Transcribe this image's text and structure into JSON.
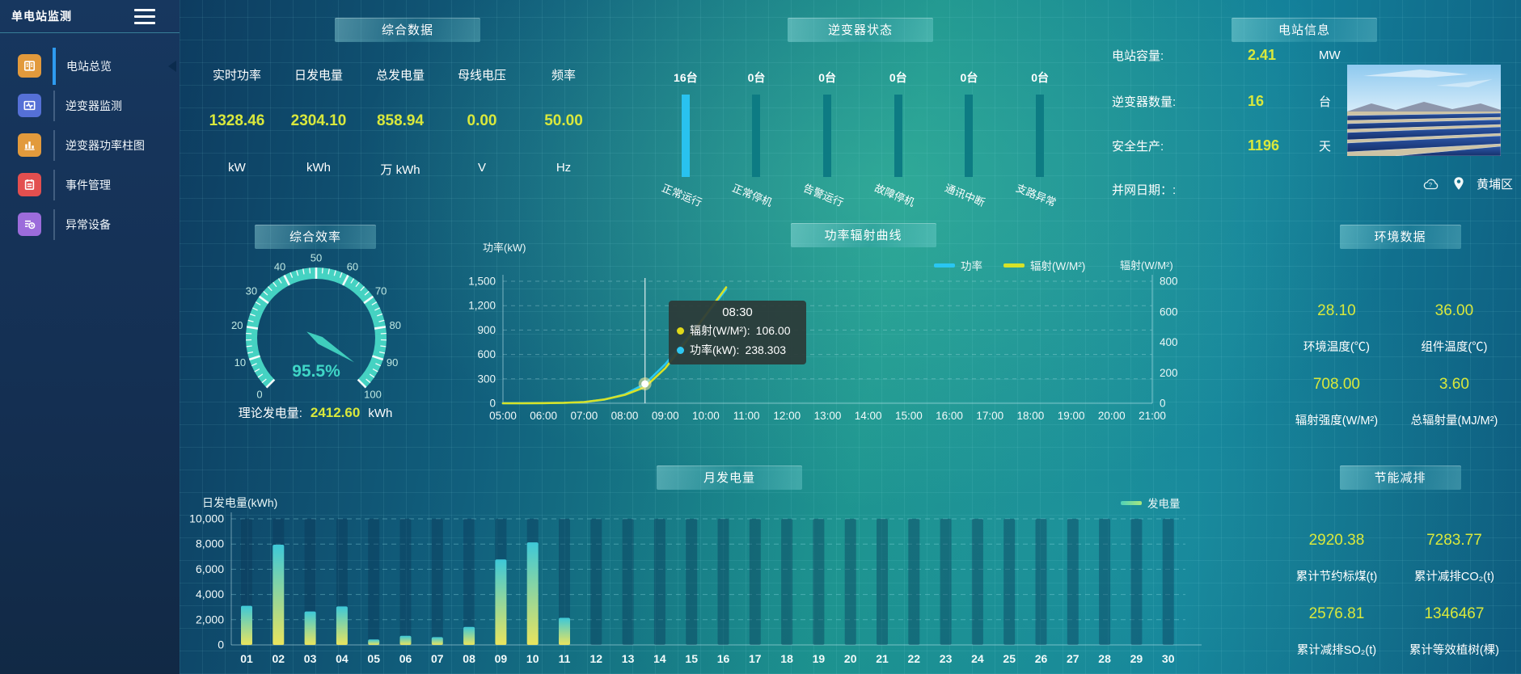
{
  "colors": {
    "value_yellow": "#d9e83c",
    "power_cyan": "#29c6f2",
    "radiation_yellow": "#d6e228",
    "inverter_bar_active": "#29c2ef",
    "inverter_bar_idle": "#0d7b83",
    "gauge_teal": "#45d2c2",
    "bar_gradient_top": "#3dc8d8",
    "bar_gradient_bottom": "#e9e45e"
  },
  "sidebar": {
    "title": "单电站监测",
    "items": [
      {
        "label": "电站总览",
        "icon": "book-icon",
        "active": true
      },
      {
        "label": "逆变器监测",
        "icon": "monitor-wave-icon",
        "active": false
      },
      {
        "label": "逆变器功率柱图",
        "icon": "bar-chart-icon",
        "active": false
      },
      {
        "label": "事件管理",
        "icon": "notebook-icon",
        "active": false
      },
      {
        "label": "异常设备",
        "icon": "device-list-clock-icon",
        "active": false
      }
    ]
  },
  "panels": {
    "summary": {
      "title": "综合数据",
      "metrics": [
        {
          "label": "实时功率",
          "value": "1328.46",
          "unit": "kW"
        },
        {
          "label": "日发电量",
          "value": "2304.10",
          "unit": "kWh"
        },
        {
          "label": "总发电量",
          "value": "858.94",
          "unit": "万 kWh"
        },
        {
          "label": "母线电压",
          "value": "0.00",
          "unit": "V"
        },
        {
          "label": "频率",
          "value": "50.00",
          "unit": "Hz"
        }
      ]
    },
    "inverter_status": {
      "title": "逆变器状态",
      "statuses": [
        {
          "count": "16台",
          "label": "正常运行",
          "highlight": true
        },
        {
          "count": "0台",
          "label": "正常停机",
          "highlight": false
        },
        {
          "count": "0台",
          "label": "告警运行",
          "highlight": false
        },
        {
          "count": "0台",
          "label": "故障停机",
          "highlight": false
        },
        {
          "count": "0台",
          "label": "通讯中断",
          "highlight": false
        },
        {
          "count": "0台",
          "label": "支路异常",
          "highlight": false
        }
      ]
    },
    "station_info": {
      "title": "电站信息",
      "rows": [
        {
          "label": "电站容量:",
          "value": "2.41",
          "unit": "MW"
        },
        {
          "label": "逆变器数量:",
          "value": "16",
          "unit": "台"
        },
        {
          "label": "安全生产:",
          "value": "1196",
          "unit": "天"
        },
        {
          "label": "并网日期：:",
          "value": "",
          "unit": ""
        }
      ],
      "district": "黄埔区"
    },
    "efficiency": {
      "title": "综合效率",
      "footer_label": "理论发电量:",
      "footer_value": "2412.60",
      "footer_unit": "kWh"
    },
    "power_curve": {
      "title": "功率辐射曲线",
      "left_axis_title": "功率(kW)",
      "right_axis_title": "辐射(W/M²)",
      "tooltip": {
        "time": "08:30",
        "rows": [
          {
            "name": "辐射(W/M²):",
            "value": "106.00",
            "color": "#e0d819"
          },
          {
            "name": "功率(kW):",
            "value": "238.303",
            "color": "#2ec7f2"
          }
        ]
      }
    },
    "environment": {
      "title": "环境数据",
      "stats": [
        {
          "value": "28.10",
          "label": "环境温度(℃)"
        },
        {
          "value": "36.00",
          "label": "组件温度(℃)"
        },
        {
          "value": "708.00",
          "label": "辐射强度(W/M²)"
        },
        {
          "value": "3.60",
          "label": "总辐射量(MJ/M²)"
        }
      ]
    },
    "monthly": {
      "title": "月发电量",
      "ylabel": "日发电量(kWh)",
      "legend": "发电量"
    },
    "saving": {
      "title": "节能减排",
      "stats": [
        {
          "value": "2920.38",
          "label": "累计节约标煤(t)"
        },
        {
          "value": "7283.77",
          "label": "累计减排CO₂(t)"
        },
        {
          "value": "2576.81",
          "label": "累计减排SO₂(t)"
        },
        {
          "value": "1346467",
          "label": "累计等效植树(棵)"
        }
      ]
    }
  },
  "chart_data": [
    {
      "type": "gauge",
      "title": "综合效率",
      "value": 95.5,
      "display": "95.5%",
      "min": 0,
      "max": 100,
      "major_step": 10,
      "minor_step": 2
    },
    {
      "type": "line",
      "title": "功率辐射曲线",
      "x": [
        "05:00",
        "05:30",
        "06:00",
        "06:30",
        "07:00",
        "07:30",
        "08:00",
        "08:30",
        "09:00",
        "09:30",
        "10:00",
        "10:30"
      ],
      "x_ticks": [
        "05:00",
        "06:00",
        "07:00",
        "08:00",
        "09:00",
        "10:00",
        "11:00",
        "12:00",
        "13:00",
        "14:00",
        "15:00",
        "16:00",
        "17:00",
        "18:00",
        "19:00",
        "20:00",
        "21:00"
      ],
      "series": [
        {
          "name": "功率",
          "color": "#29c6f2",
          "axis": "left",
          "values": [
            0,
            1,
            2,
            5,
            15,
            45,
            110,
            238.303,
            480,
            780,
            1080,
            1400
          ]
        },
        {
          "name": "辐射(W/M²)",
          "color": "#d6e228",
          "axis": "right",
          "values": [
            0,
            0,
            1,
            3,
            8,
            25,
            55,
            106,
            230,
            400,
            580,
            760
          ]
        }
      ],
      "left_axis": {
        "label": "功率(kW)",
        "ticks": [
          0,
          300,
          600,
          900,
          1200,
          1500
        ],
        "max": 1500
      },
      "right_axis": {
        "label": "辐射(W/M²)",
        "ticks": [
          0,
          200,
          400,
          600,
          800
        ],
        "max": 800
      },
      "marker_index": 7,
      "legend_position": "top-right",
      "grid": "dashed-horizontal"
    },
    {
      "type": "bar",
      "title": "月发电量",
      "xlabel": "",
      "ylabel": "日发电量(kWh)",
      "categories": [
        "01",
        "02",
        "03",
        "04",
        "05",
        "06",
        "07",
        "08",
        "09",
        "10",
        "11",
        "12",
        "13",
        "14",
        "15",
        "16",
        "17",
        "18",
        "19",
        "20",
        "21",
        "22",
        "23",
        "24",
        "25",
        "26",
        "27",
        "28",
        "29",
        "30"
      ],
      "values": [
        3100,
        7950,
        2650,
        3050,
        430,
        720,
        620,
        1430,
        6780,
        8130,
        2150,
        0,
        0,
        0,
        0,
        0,
        0,
        0,
        0,
        0,
        0,
        0,
        0,
        0,
        0,
        0,
        0,
        0,
        0,
        0
      ],
      "ylim": [
        0,
        10000
      ],
      "yticks": [
        0,
        2000,
        4000,
        6000,
        8000,
        10000
      ],
      "legend": "发电量",
      "legend_position": "top-right",
      "grid": "dashed-horizontal"
    }
  ]
}
